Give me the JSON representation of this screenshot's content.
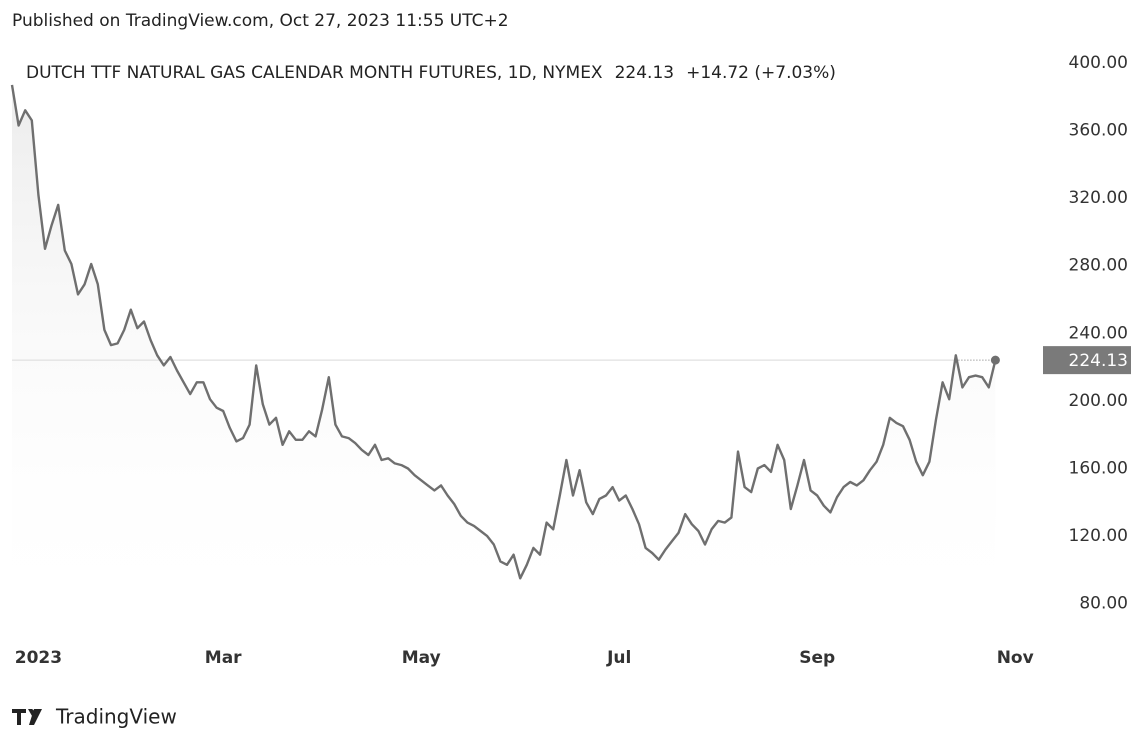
{
  "chart_data": {
    "type": "line",
    "published": "Published on TradingView.com, Oct 27, 2023 11:55 UTC+2",
    "title": "DUTCH TTF NATURAL GAS CALENDAR MONTH FUTURES, 1D, NYMEX",
    "change": "+14.72 (+7.03%)",
    "footer": "TradingView",
    "color": "#6f6f6f",
    "categories": [
      null,
      null,
      null,
      null,
      "2023",
      null,
      null,
      null,
      null,
      null,
      null,
      null,
      null,
      null,
      null,
      null,
      null,
      null,
      null,
      null,
      null,
      null,
      null,
      null,
      null,
      null,
      null,
      null,
      null,
      null,
      null,
      null,
      "Mar",
      null,
      null,
      null,
      null,
      null,
      null,
      null,
      null,
      null,
      null,
      null,
      null,
      null,
      null,
      null,
      null,
      null,
      null,
      null,
      null,
      null,
      null,
      null,
      null,
      null,
      null,
      null,
      null,
      null,
      "May",
      null,
      null,
      null,
      null,
      null,
      null,
      null,
      null,
      null,
      null,
      null,
      null,
      null,
      null,
      null,
      null,
      null,
      null,
      null,
      null,
      null,
      null,
      null,
      null,
      null,
      null,
      null,
      null,
      null,
      "Jul",
      null,
      null,
      null,
      null,
      null,
      null,
      null,
      null,
      null,
      null,
      null,
      null,
      null,
      null,
      null,
      null,
      null,
      null,
      null,
      null,
      null,
      null,
      null,
      null,
      null,
      null,
      null,
      null,
      null,
      "Sep",
      null,
      null,
      null,
      null,
      null,
      null,
      null,
      null,
      null,
      null,
      null,
      null,
      null,
      null,
      null,
      null,
      null,
      null,
      null,
      null,
      null,
      null,
      null,
      null,
      null,
      null,
      null,
      null,
      null,
      "Nov"
    ],
    "values": [
      387,
      363,
      372,
      366,
      322,
      290,
      304,
      316,
      289,
      281,
      263,
      269,
      281,
      269,
      242,
      233,
      234,
      242,
      254,
      243,
      247,
      236,
      227,
      221,
      226,
      218,
      211,
      204,
      211,
      211,
      201,
      196,
      194,
      184,
      176,
      178,
      186,
      221,
      198,
      186,
      190,
      174,
      182,
      177,
      177,
      182,
      179,
      195,
      214,
      186,
      179,
      178,
      175,
      171,
      168,
      174,
      165,
      166,
      163,
      162,
      160,
      156,
      153,
      150,
      147,
      150,
      144,
      139,
      132,
      128,
      126,
      123,
      120,
      115,
      105,
      103,
      109,
      95,
      103,
      113,
      109,
      128,
      124,
      144,
      165,
      144,
      159,
      140,
      133,
      142,
      144,
      149,
      141,
      144,
      136,
      127,
      113,
      110,
      106,
      112,
      117,
      122,
      133,
      127,
      123,
      115,
      124,
      129,
      128,
      131,
      170,
      149,
      146,
      160,
      162,
      158,
      174,
      165,
      136,
      150,
      165,
      147,
      144,
      138,
      134,
      143,
      149,
      152,
      150,
      153,
      159,
      164,
      174,
      190,
      187,
      185,
      177,
      164,
      156,
      164,
      189,
      211,
      201,
      227,
      208,
      214,
      215,
      214,
      208,
      224.13,
      null,
      null,
      null
    ],
    "ylim": [
      65,
      413
    ],
    "yticks": [
      {
        "value": 80,
        "label": "80.00"
      },
      {
        "value": 120,
        "label": "120.00"
      },
      {
        "value": 160,
        "label": "160.00"
      },
      {
        "value": 200,
        "label": "200.00"
      },
      {
        "value": 240,
        "label": "240.00"
      },
      {
        "value": 280,
        "label": "280.00"
      },
      {
        "value": 320,
        "label": "320.00"
      },
      {
        "value": 360,
        "label": "360.00"
      },
      {
        "value": 400,
        "label": "400.00"
      }
    ],
    "grid": false
  }
}
